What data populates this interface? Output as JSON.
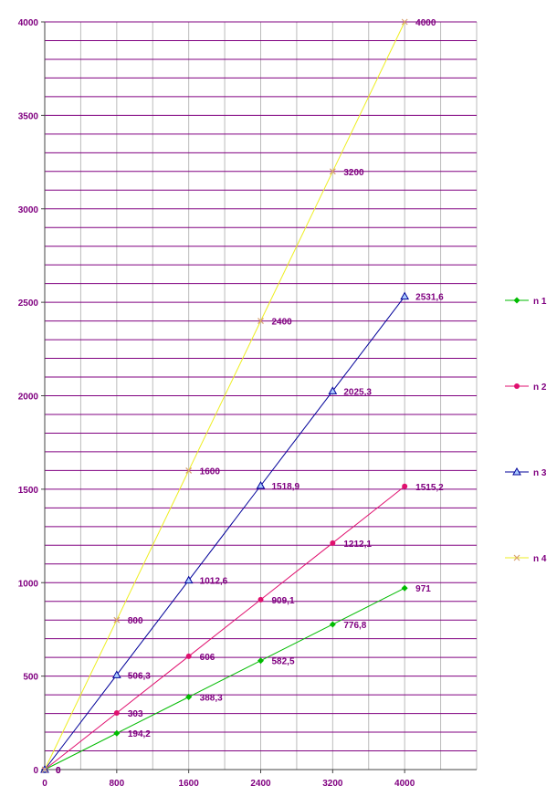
{
  "chart_data": {
    "type": "line",
    "x": [
      0,
      800,
      1600,
      2400,
      3200,
      4000
    ],
    "xlim": [
      0,
      4800
    ],
    "ylim": [
      0,
      4000
    ],
    "xticks": [
      0,
      800,
      1600,
      2400,
      3200,
      4000
    ],
    "yticks": [
      0,
      500,
      1000,
      1500,
      2000,
      2500,
      3000,
      3500,
      4000
    ],
    "xtick_labels": [
      "0",
      "800",
      "1600",
      "2400",
      "3200",
      "4000"
    ],
    "ytick_labels": [
      "0",
      "500",
      "1000",
      "1500",
      "2000",
      "2500",
      "3000",
      "3500",
      "4000"
    ],
    "horizontal_grid_step": 100,
    "vertical_grid_step": 400,
    "grid": true,
    "legend_position": "right",
    "series": [
      {
        "name": "n 1",
        "color": "#00bb00",
        "marker": "diamond",
        "values": [
          0,
          194.2,
          388.3,
          582.5,
          776.8,
          971
        ],
        "labels": [
          "0",
          "194,2",
          "388,3",
          "582,5",
          "776,8",
          "971"
        ]
      },
      {
        "name": "n 2",
        "color": "#e0106f",
        "marker": "circle",
        "values": [
          0,
          303,
          606,
          909.1,
          1212.1,
          1515.2
        ],
        "labels": [
          "0",
          "303",
          "606",
          "909,1",
          "1212,1",
          "1515,2"
        ]
      },
      {
        "name": "n 3",
        "color": "#000099",
        "marker": "triangle",
        "values": [
          0,
          506.3,
          1012.6,
          1518.9,
          2025.3,
          2531.6
        ],
        "labels": [
          "0",
          "506,3",
          "1012,6",
          "1518,9",
          "2025,3",
          "2531,6"
        ]
      },
      {
        "name": "n 4",
        "color": "#eeee22",
        "marker": "x",
        "values": [
          0,
          800,
          1600,
          2400,
          3200,
          4000
        ],
        "labels": [
          "0",
          "800",
          "1600",
          "2400",
          "3200",
          "4000"
        ]
      }
    ]
  },
  "colors": {
    "grid_horizontal": "#800080",
    "grid_vertical": "#bbbbbb",
    "axis": "#444444",
    "text": "#800080"
  }
}
